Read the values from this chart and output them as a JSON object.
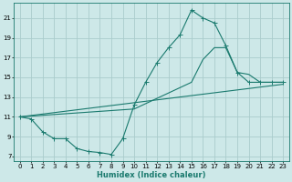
{
  "xlabel": "Humidex (Indice chaleur)",
  "bg_color": "#cde8e8",
  "grid_color": "#aacccc",
  "line_color": "#1a7a6e",
  "xlim": [
    -0.5,
    23.5
  ],
  "ylim": [
    6.5,
    22.5
  ],
  "xticks": [
    0,
    1,
    2,
    3,
    4,
    5,
    6,
    7,
    8,
    9,
    10,
    11,
    12,
    13,
    14,
    15,
    16,
    17,
    18,
    19,
    20,
    21,
    22,
    23
  ],
  "yticks": [
    7,
    9,
    11,
    13,
    15,
    17,
    19,
    21
  ],
  "line1_x": [
    0,
    1,
    2,
    3,
    4,
    5,
    6,
    7,
    8,
    9,
    10,
    11,
    12,
    13,
    14,
    15,
    16,
    17,
    18,
    19,
    20,
    21,
    22,
    23
  ],
  "line1_y": [
    11.0,
    10.8,
    9.5,
    8.8,
    8.8,
    7.8,
    7.5,
    7.4,
    7.2,
    8.8,
    12.2,
    14.5,
    16.5,
    18.0,
    19.3,
    21.8,
    21.0,
    20.5,
    18.2,
    15.5,
    14.5,
    14.5,
    14.5,
    14.5
  ],
  "line2_x": [
    0,
    23
  ],
  "line2_y": [
    11.0,
    14.3
  ],
  "line3_x": [
    0,
    10,
    15,
    16,
    17,
    18,
    19,
    20,
    21,
    22,
    23
  ],
  "line3_y": [
    11.0,
    11.8,
    14.5,
    16.8,
    18.0,
    18.0,
    15.5,
    15.3,
    14.5,
    14.5,
    14.5
  ],
  "markersize": 2.0,
  "linewidth": 0.8,
  "tick_fontsize": 5.0,
  "xlabel_fontsize": 6.0
}
